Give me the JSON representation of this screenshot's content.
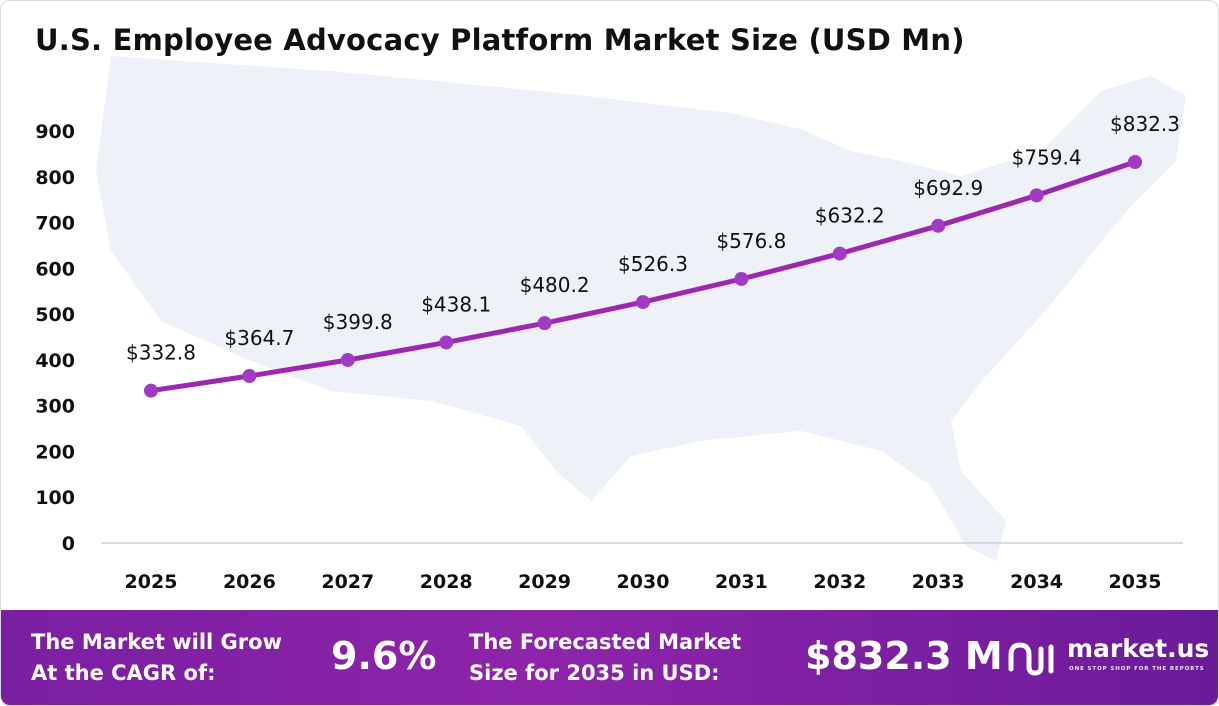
{
  "colors": {
    "line": "#9c27b0",
    "marker": "#a23bc4",
    "footer": "#7b1fa2",
    "map": "#eef2f8"
  },
  "chart_data": {
    "type": "line",
    "title": "U.S. Employee Advocacy Platform Market Size (USD Mn)",
    "xlabel": "",
    "ylabel": "",
    "categories": [
      "2025",
      "2026",
      "2027",
      "2028",
      "2029",
      "2030",
      "2031",
      "2032",
      "2033",
      "2034",
      "2035"
    ],
    "values": [
      332.8,
      364.7,
      399.8,
      438.1,
      480.2,
      526.3,
      576.8,
      632.2,
      692.9,
      759.4,
      832.3
    ],
    "data_labels": [
      "$332.8",
      "$364.7",
      "$399.8",
      "$438.1",
      "$480.2",
      "$526.3",
      "$576.8",
      "$632.2",
      "$692.9",
      "$759.4",
      "$832.3"
    ],
    "yticks": [
      0,
      100,
      200,
      300,
      400,
      500,
      600,
      700,
      800,
      900
    ],
    "ylim": [
      0,
      900
    ],
    "grid": false,
    "legend": "none"
  },
  "footer": {
    "cagr_line1": "The Market will Grow",
    "cagr_line2": "At the CAGR of:",
    "cagr_value": "9.6%",
    "forecast_line1": "The Forecasted Market",
    "forecast_line2": "Size for 2035 in USD:",
    "forecast_value": "$832.3 M",
    "logo_name": "market.us",
    "logo_tagline": "ONE STOP SHOP FOR THE REPORTS"
  }
}
